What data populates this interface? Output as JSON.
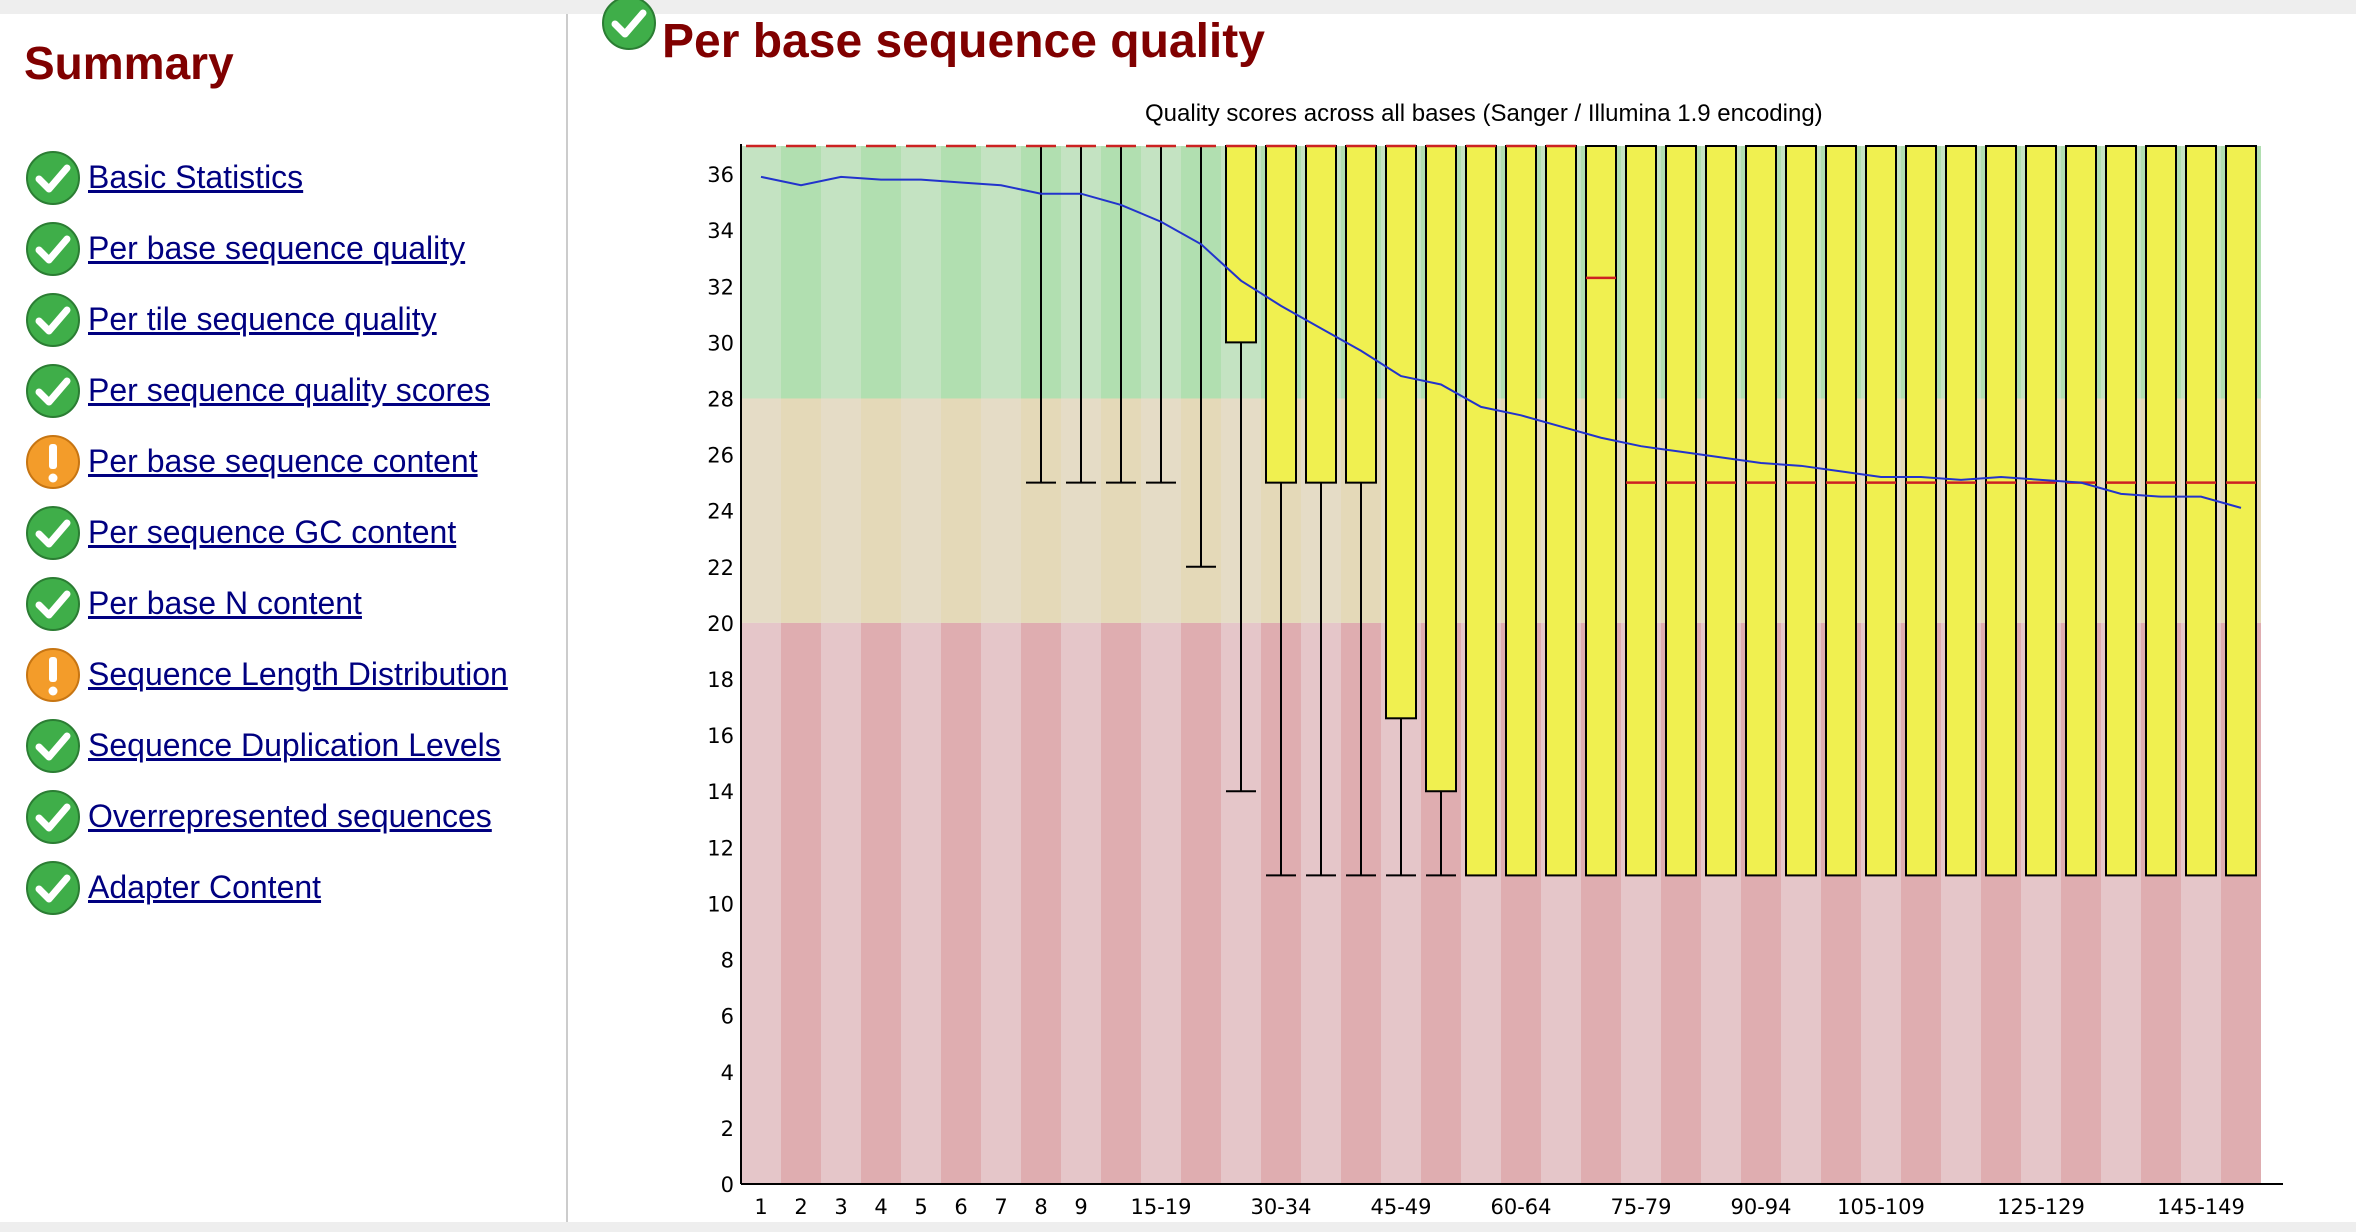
{
  "sidebar": {
    "title": "Summary",
    "items": [
      {
        "label": "Basic Statistics",
        "status": "pass"
      },
      {
        "label": "Per base sequence quality",
        "status": "pass"
      },
      {
        "label": "Per tile sequence quality",
        "status": "pass"
      },
      {
        "label": "Per sequence quality scores",
        "status": "pass"
      },
      {
        "label": "Per base sequence content",
        "status": "warn"
      },
      {
        "label": "Per sequence GC content",
        "status": "pass"
      },
      {
        "label": "Per base N content",
        "status": "pass"
      },
      {
        "label": "Sequence Length Distribution",
        "status": "warn"
      },
      {
        "label": "Sequence Duplication Levels",
        "status": "pass"
      },
      {
        "label": "Overrepresented sequences",
        "status": "pass"
      },
      {
        "label": "Adapter Content",
        "status": "pass"
      }
    ]
  },
  "main": {
    "title": "Per base sequence quality",
    "status": "pass"
  },
  "colors": {
    "heading": "#800000",
    "link": "#000080",
    "pass": "#3fae49",
    "warn": "#f39c2a",
    "box": "#f0f050",
    "median": "#cc2222",
    "mean": "#2233cc",
    "zone_good": [
      "#c4e3c2",
      "#b1dfb0"
    ],
    "zone_ok": [
      "#e5dcc6",
      "#e4d9b8"
    ],
    "zone_bad": [
      "#e5c6c9",
      "#dfadb0"
    ]
  },
  "chart_data": {
    "type": "box",
    "title": "Quality scores across all bases (Sanger / Illumina 1.9 encoding)",
    "xlabel": "",
    "ylabel": "",
    "ylim": [
      0,
      37
    ],
    "yticks": [
      0,
      2,
      4,
      6,
      8,
      10,
      12,
      14,
      16,
      18,
      20,
      22,
      24,
      26,
      28,
      30,
      32,
      34,
      36
    ],
    "zones": [
      {
        "from": 28,
        "to": 37,
        "label": "good"
      },
      {
        "from": 20,
        "to": 28,
        "label": "ok"
      },
      {
        "from": 0,
        "to": 20,
        "label": "bad"
      }
    ],
    "categories": [
      "1",
      "2",
      "3",
      "4",
      "5",
      "6",
      "7",
      "8",
      "9",
      "10-14",
      "15-19",
      "20-24",
      "25-29",
      "30-34",
      "35-39",
      "40-44",
      "45-49",
      "50-54",
      "55-59",
      "60-64",
      "65-69",
      "70-74",
      "75-79",
      "80-84",
      "85-89",
      "90-94",
      "95-99",
      "100-104",
      "105-109",
      "110-114",
      "115-119",
      "120-124",
      "125-129",
      "130-134",
      "135-139",
      "140-144",
      "145-149",
      "150"
    ],
    "tick_labels": [
      "1",
      "2",
      "3",
      "4",
      "5",
      "6",
      "7",
      "8",
      "9",
      "",
      "15-19",
      "",
      "",
      "30-34",
      "",
      "",
      "45-49",
      "",
      "",
      "60-64",
      "",
      "",
      "75-79",
      "",
      "",
      "90-94",
      "",
      "",
      "105-109",
      "",
      "",
      "",
      "125-129",
      "",
      "",
      "",
      "145-149",
      ""
    ],
    "boxes": [
      {
        "q1": 37,
        "median": 37,
        "q3": 37,
        "lo": 37,
        "hi": 37
      },
      {
        "q1": 37,
        "median": 37,
        "q3": 37,
        "lo": 37,
        "hi": 37
      },
      {
        "q1": 37,
        "median": 37,
        "q3": 37,
        "lo": 37,
        "hi": 37
      },
      {
        "q1": 37,
        "median": 37,
        "q3": 37,
        "lo": 37,
        "hi": 37
      },
      {
        "q1": 37,
        "median": 37,
        "q3": 37,
        "lo": 37,
        "hi": 37
      },
      {
        "q1": 37,
        "median": 37,
        "q3": 37,
        "lo": 37,
        "hi": 37
      },
      {
        "q1": 37,
        "median": 37,
        "q3": 37,
        "lo": 37,
        "hi": 37
      },
      {
        "q1": 37,
        "median": 37,
        "q3": 37,
        "lo": 25,
        "hi": 37
      },
      {
        "q1": 37,
        "median": 37,
        "q3": 37,
        "lo": 25,
        "hi": 37
      },
      {
        "q1": 37,
        "median": 37,
        "q3": 37,
        "lo": 25,
        "hi": 37
      },
      {
        "q1": 37,
        "median": 37,
        "q3": 37,
        "lo": 25,
        "hi": 37
      },
      {
        "q1": 37,
        "median": 37,
        "q3": 37,
        "lo": 22,
        "hi": 37
      },
      {
        "q1": 30,
        "median": 37,
        "q3": 37,
        "lo": 14,
        "hi": 37
      },
      {
        "q1": 25,
        "median": 37,
        "q3": 37,
        "lo": 11,
        "hi": 37
      },
      {
        "q1": 25,
        "median": 37,
        "q3": 37,
        "lo": 11,
        "hi": 37
      },
      {
        "q1": 25,
        "median": 37,
        "q3": 37,
        "lo": 11,
        "hi": 37
      },
      {
        "q1": 16.6,
        "median": 37,
        "q3": 37,
        "lo": 11,
        "hi": 37
      },
      {
        "q1": 14,
        "median": 37,
        "q3": 37,
        "lo": 11,
        "hi": 37
      },
      {
        "q1": 11,
        "median": 37,
        "q3": 37,
        "lo": 11,
        "hi": 37
      },
      {
        "q1": 11,
        "median": 37,
        "q3": 37,
        "lo": 11,
        "hi": 37
      },
      {
        "q1": 11,
        "median": 37,
        "q3": 37,
        "lo": 11,
        "hi": 37
      },
      {
        "q1": 11,
        "median": 32.3,
        "q3": 37,
        "lo": 11,
        "hi": 37
      },
      {
        "q1": 11,
        "median": 25,
        "q3": 37,
        "lo": 11,
        "hi": 37
      },
      {
        "q1": 11,
        "median": 25,
        "q3": 37,
        "lo": 11,
        "hi": 37
      },
      {
        "q1": 11,
        "median": 25,
        "q3": 37,
        "lo": 11,
        "hi": 37
      },
      {
        "q1": 11,
        "median": 25,
        "q3": 37,
        "lo": 11,
        "hi": 37
      },
      {
        "q1": 11,
        "median": 25,
        "q3": 37,
        "lo": 11,
        "hi": 37
      },
      {
        "q1": 11,
        "median": 25,
        "q3": 37,
        "lo": 11,
        "hi": 37
      },
      {
        "q1": 11,
        "median": 25,
        "q3": 37,
        "lo": 11,
        "hi": 37
      },
      {
        "q1": 11,
        "median": 25,
        "q3": 37,
        "lo": 11,
        "hi": 37
      },
      {
        "q1": 11,
        "median": 25,
        "q3": 37,
        "lo": 11,
        "hi": 37
      },
      {
        "q1": 11,
        "median": 25,
        "q3": 37,
        "lo": 11,
        "hi": 37
      },
      {
        "q1": 11,
        "median": 25,
        "q3": 37,
        "lo": 11,
        "hi": 37
      },
      {
        "q1": 11,
        "median": 25,
        "q3": 37,
        "lo": 11,
        "hi": 37
      },
      {
        "q1": 11,
        "median": 25,
        "q3": 37,
        "lo": 11,
        "hi": 37
      },
      {
        "q1": 11,
        "median": 25,
        "q3": 37,
        "lo": 11,
        "hi": 37
      },
      {
        "q1": 11,
        "median": 25,
        "q3": 37,
        "lo": 11,
        "hi": 37
      },
      {
        "q1": 11,
        "median": 25,
        "q3": 37,
        "lo": 11,
        "hi": 37
      }
    ],
    "mean": [
      35.9,
      35.6,
      35.9,
      35.8,
      35.8,
      35.7,
      35.6,
      35.3,
      35.3,
      34.9,
      34.3,
      33.5,
      32.2,
      31.3,
      30.5,
      29.7,
      28.8,
      28.5,
      27.7,
      27.4,
      27.0,
      26.6,
      26.3,
      26.1,
      25.9,
      25.7,
      25.6,
      25.4,
      25.2,
      25.2,
      25.1,
      25.2,
      25.1,
      25.0,
      24.6,
      24.5,
      24.5,
      24.1
    ]
  }
}
